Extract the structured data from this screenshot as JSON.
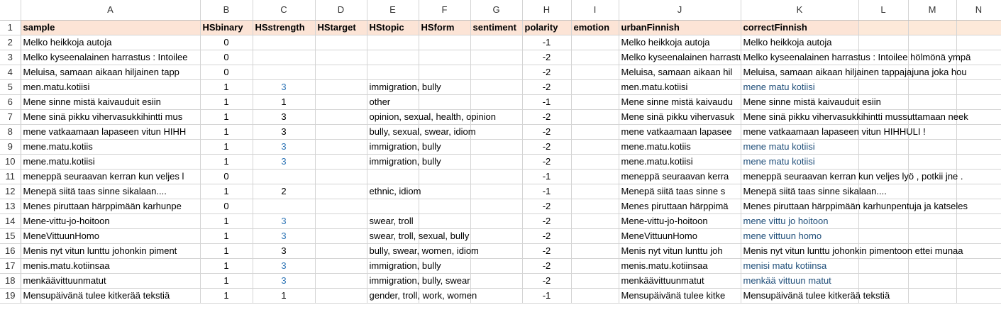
{
  "columns": [
    "A",
    "B",
    "C",
    "D",
    "E",
    "F",
    "G",
    "H",
    "I",
    "J",
    "K",
    "L",
    "M",
    "N"
  ],
  "headers": [
    "sample",
    "HSbinary",
    "HSstrength",
    "HStarget",
    "HStopic",
    "HSform",
    "sentiment",
    "polarity",
    "emotion",
    "urbanFinnish",
    "correctFinnish",
    "",
    "",
    ""
  ],
  "colors": {
    "header_fill": "#fce4d6",
    "blue_text": "#2e75b6",
    "dark_blue_text": "#1f4e79"
  },
  "rows": [
    {
      "n": "2",
      "sample": "Melko heikkoja autoja",
      "bin": "0",
      "str": "",
      "strBlue": false,
      "topic": "",
      "pol": "-1",
      "polBold": true,
      "urban": "Melko heikkoja autoja",
      "correct": "Melko heikkoja autoja",
      "correctBlue": false
    },
    {
      "n": "3",
      "sample": "Melko kyseenalainen harrastus : Intoilee",
      "bin": "0",
      "str": "",
      "strBlue": false,
      "topic": "",
      "pol": "-2",
      "polBold": true,
      "urban": "Melko kyseenalainen harrastus",
      "correct": "Melko kyseenalainen harrastus : Intoilee hölmönä ympä",
      "correctBlue": false
    },
    {
      "n": "4",
      "sample": "Meluisa, samaan aikaan hiljainen tapp",
      "bin": "0",
      "str": "",
      "strBlue": false,
      "topic": "",
      "pol": "-2",
      "polBold": true,
      "urban": "Meluisa, samaan aikaan hil",
      "correct": "Meluisa, samaan aikaan hiljainen tappajajuna joka hou",
      "correctBlue": false
    },
    {
      "n": "5",
      "sample": "men.matu.kotiisi",
      "bin": "1",
      "str": "3",
      "strBlue": true,
      "topic": "immigration, bully",
      "pol": "-2",
      "polBold": false,
      "urban": "men.matu.kotiisi",
      "correct": "mene matu kotiisi",
      "correctBlue": true
    },
    {
      "n": "6",
      "sample": "Mene sinne mistä kaivauduit esiin",
      "bin": "1",
      "str": "1",
      "strBlue": false,
      "topic": "other",
      "pol": "-1",
      "polBold": true,
      "urban": "Mene sinne mistä kaivaudu",
      "correct": "Mene sinne mistä kaivauduit esiin",
      "correctBlue": false
    },
    {
      "n": "7",
      "sample": "Mene sinä pikku vihervasukkihintti mus",
      "bin": "1",
      "str": "3",
      "strBlue": false,
      "topic": "opinion, sexual, health, opinion",
      "pol": "-2",
      "polBold": true,
      "urban": "Mene sinä pikku vihervasuk",
      "correct": "Mene sinä pikku vihervasukkihintti mussuttamaan neek",
      "correctBlue": false
    },
    {
      "n": "8",
      "sample": "mene vatkaamaan lapaseen vitun HIHH",
      "bin": "1",
      "str": "3",
      "strBlue": false,
      "topic": "bully, sexual, swear, idiom",
      "pol": "-2",
      "polBold": true,
      "urban": "mene vatkaamaan lapasee",
      "correct": "mene vatkaamaan lapaseen vitun HIHHULI !",
      "correctBlue": false
    },
    {
      "n": "9",
      "sample": "mene.matu.kotiis",
      "bin": "1",
      "str": "3",
      "strBlue": true,
      "topic": "immigration, bully",
      "pol": "-2",
      "polBold": false,
      "urban": "mene.matu.kotiis",
      "correct": "mene matu kotiisi",
      "correctBlue": true
    },
    {
      "n": "10",
      "sample": "mene.matu.kotiisi",
      "bin": "1",
      "str": "3",
      "strBlue": true,
      "topic": "immigration, bully",
      "pol": "-2",
      "polBold": false,
      "urban": "mene.matu.kotiisi",
      "correct": "mene matu kotiisi",
      "correctBlue": true
    },
    {
      "n": "11",
      "sample": "meneppä seuraavan kerran kun veljes l",
      "bin": "0",
      "str": "",
      "strBlue": false,
      "topic": "",
      "pol": "-1",
      "polBold": true,
      "urban": "meneppä seuraavan kerra",
      "correct": "meneppä seuraavan kerran kun veljes lyö , potkii jne .",
      "correctBlue": false
    },
    {
      "n": "12",
      "sample": "Menepä siitä taas sinne sikalaan....",
      "bin": "1",
      "str": "2",
      "strBlue": false,
      "topic": "ethnic, idiom",
      "pol": "-1",
      "polBold": true,
      "urban": "Menepä siitä taas sinne s",
      "correct": "Menepä siitä taas sinne sikalaan....",
      "correctBlue": false
    },
    {
      "n": "13",
      "sample": "Menes piruttaan härppimään karhunpe",
      "bin": "0",
      "str": "",
      "strBlue": false,
      "topic": "",
      "pol": "-2",
      "polBold": true,
      "urban": "Menes piruttaan härppimä",
      "correct": "Menes piruttaan härppimään karhunpentuja ja katseles",
      "correctBlue": false
    },
    {
      "n": "14",
      "sample": "Mene-vittu-jo-hoitoon",
      "bin": "1",
      "str": "3",
      "strBlue": true,
      "topic": "swear, troll",
      "pol": "-2",
      "polBold": false,
      "urban": "Mene-vittu-jo-hoitoon",
      "correct": "mene vittu jo hoitoon",
      "correctBlue": true
    },
    {
      "n": "15",
      "sample": "MeneVittuunHomo",
      "bin": "1",
      "str": "3",
      "strBlue": true,
      "topic": "swear, troll, sexual, bully",
      "pol": "-2",
      "polBold": false,
      "urban": "MeneVittuunHomo",
      "correct": "mene vittuun homo",
      "correctBlue": true
    },
    {
      "n": "16",
      "sample": "Menis nyt vitun lunttu johonkin piment",
      "bin": "1",
      "str": "3",
      "strBlue": false,
      "topic": "bully, swear, women, idiom",
      "pol": "-2",
      "polBold": true,
      "urban": "Menis nyt vitun lunttu joh",
      "correct": "Menis nyt vitun lunttu johonkin pimentoon ettei munaa",
      "correctBlue": false
    },
    {
      "n": "17",
      "sample": "menis.matu.kotiinsaa",
      "bin": "1",
      "str": "3",
      "strBlue": true,
      "topic": "immigration, bully",
      "pol": "-2",
      "polBold": false,
      "urban": "menis.matu.kotiinsaa",
      "correct": "menisi matu kotiinsa",
      "correctBlue": true
    },
    {
      "n": "18",
      "sample": "menkäävittuunmatut",
      "bin": "1",
      "str": "3",
      "strBlue": true,
      "topic": "immigration, bully, swear",
      "pol": "-2",
      "polBold": false,
      "urban": "menkäävittuunmatut",
      "correct": "menkää vittuun matut",
      "correctBlue": true
    },
    {
      "n": "19",
      "sample": "Mensupäivänä tulee kitkerää tekstiä",
      "bin": "1",
      "str": "1",
      "strBlue": false,
      "topic": "gender, troll, work, women",
      "pol": "-1",
      "polBold": true,
      "urban": "Mensupäivänä tulee kitke",
      "correct": "Mensupäivänä tulee kitkerää tekstiä",
      "correctBlue": false
    }
  ]
}
